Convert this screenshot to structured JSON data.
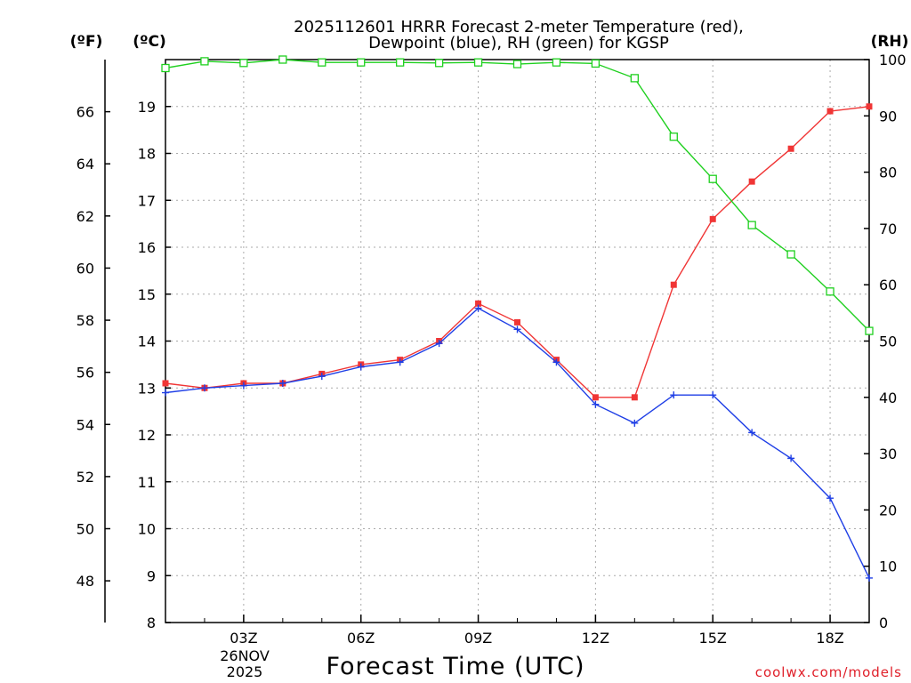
{
  "chart_data": {
    "type": "line",
    "title_line1": "2025112601 HRRR Forecast 2-meter Temperature (red),",
    "title_line2": "Dewpoint (blue), RH (green) for KGSP",
    "left_outer_unit": "(ºF)",
    "left_unit": "(ºC)",
    "right_unit": "(RH)",
    "xlabel": "Forecast Time (UTC)",
    "date_label_day": "26NOV",
    "date_label_year": "2025",
    "credit": "coolwx.com/models",
    "x_hours": [
      1,
      2,
      3,
      4,
      5,
      6,
      7,
      8,
      9,
      10,
      11,
      12,
      13,
      14,
      15,
      16,
      17,
      18,
      19
    ],
    "xlim": [
      1,
      19
    ],
    "x_ticks": [
      {
        "hour": 3,
        "label": "03Z"
      },
      {
        "hour": 6,
        "label": "06Z"
      },
      {
        "hour": 9,
        "label": "09Z"
      },
      {
        "hour": 12,
        "label": "12Z"
      },
      {
        "hour": 15,
        "label": "15Z"
      },
      {
        "hour": 18,
        "label": "18Z"
      }
    ],
    "celsius_axis": {
      "min": 8,
      "max": 20,
      "ticks": [
        "8",
        "9",
        "10",
        "11",
        "12",
        "13",
        "14",
        "15",
        "16",
        "17",
        "18",
        "19"
      ]
    },
    "fahrenheit_axis": {
      "ticks": [
        "48",
        "50",
        "52",
        "54",
        "56",
        "58",
        "60",
        "62",
        "64",
        "66"
      ]
    },
    "rh_axis": {
      "min": 0,
      "max": 100,
      "ticks": [
        "0",
        "10",
        "20",
        "30",
        "40",
        "50",
        "60",
        "70",
        "80",
        "90",
        "100"
      ]
    },
    "series": [
      {
        "name": "Temperature",
        "axis": "celsius",
        "color": "#f03535",
        "marker": "filled-square",
        "values": [
          13.1,
          13.0,
          13.1,
          13.1,
          13.3,
          13.5,
          13.6,
          14.0,
          14.8,
          14.4,
          13.6,
          12.8,
          12.8,
          15.2,
          16.6,
          17.4,
          18.1,
          18.9,
          19.0
        ]
      },
      {
        "name": "Dewpoint",
        "axis": "celsius",
        "color": "#1f3fe6",
        "marker": "plus",
        "values": [
          12.9,
          13.0,
          13.05,
          13.1,
          13.25,
          13.45,
          13.55,
          13.95,
          14.7,
          14.25,
          13.55,
          12.65,
          12.25,
          12.85,
          12.85,
          12.05,
          11.5,
          10.65,
          8.95
        ]
      },
      {
        "name": "RH",
        "axis": "rh",
        "color": "#1fd01f",
        "marker": "open-square",
        "values": [
          98.5,
          99.7,
          99.4,
          100,
          99.5,
          99.5,
          99.5,
          99.4,
          99.5,
          99.2,
          99.5,
          99.3,
          96.7,
          86.3,
          78.8,
          70.6,
          65.4,
          58.8,
          51.8
        ]
      }
    ]
  }
}
